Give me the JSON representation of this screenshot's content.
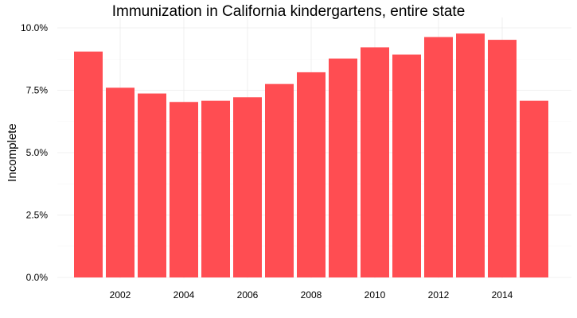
{
  "chart_data": {
    "type": "bar",
    "title": "Immunization in California kindergartens, entire state",
    "xlabel": "",
    "ylabel": "Incomplete",
    "x": [
      2001,
      2002,
      2003,
      2004,
      2005,
      2006,
      2007,
      2008,
      2009,
      2010,
      2011,
      2012,
      2013,
      2014,
      2015
    ],
    "values": [
      9.05,
      7.6,
      7.37,
      7.03,
      7.08,
      7.22,
      7.75,
      8.22,
      8.77,
      9.22,
      8.93,
      9.63,
      9.77,
      9.52,
      7.08
    ],
    "ylim": [
      0,
      10
    ],
    "y_ticks": [
      "0.0%",
      "2.5%",
      "5.0%",
      "7.5%",
      "10.0%"
    ],
    "y_tick_values": [
      0,
      2.5,
      5,
      7.5,
      10
    ],
    "x_ticks": [
      "2002",
      "2004",
      "2006",
      "2008",
      "2010",
      "2012",
      "2014"
    ],
    "x_tick_values": [
      2002,
      2004,
      2006,
      2008,
      2010,
      2012,
      2014
    ],
    "bar_color": "#ff4d52",
    "grid": true,
    "grid_color": "#ebebeb"
  }
}
